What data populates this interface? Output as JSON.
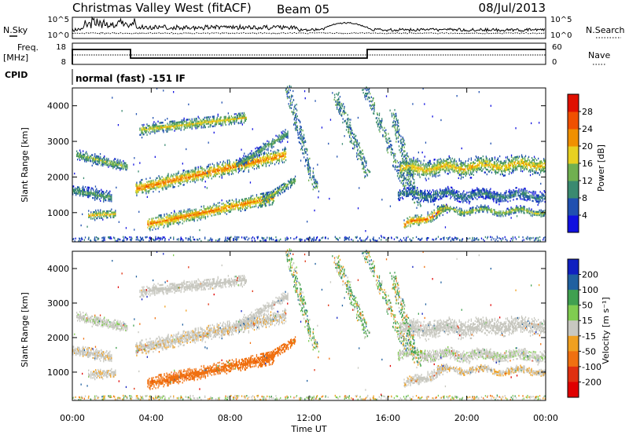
{
  "header": {
    "station": "Christmas Valley West (fitACF)",
    "beam": "Beam 05",
    "date": "08/Jul/2013"
  },
  "top_panels": {
    "nsky_label": "N.Sky",
    "nsearch_label": "N.Search",
    "noise_ticks": [
      "10^5",
      "10^0"
    ],
    "freq_label_1": "Freq.",
    "freq_label_2": "[MHz]",
    "freq_ticks": [
      "18",
      "8"
    ],
    "nave_label": "Nave",
    "nave_ticks": [
      "60",
      "0"
    ],
    "cpid_label": "CPID",
    "cpid_text": "normal (fast) -151 IF"
  },
  "chart_data": [
    {
      "type": "heatmap",
      "name": "power",
      "ylabel": "Slant Range [km]",
      "xlabel": "Time UT",
      "x_ticks": [
        "00:00",
        "04:00",
        "08:00",
        "12:00",
        "16:00",
        "20:00",
        "00:00"
      ],
      "xlim_hours": [
        0,
        24
      ],
      "y_ticks": [
        1000,
        2000,
        3000,
        4000
      ],
      "ylim_km": [
        180,
        4500
      ],
      "colorbar_label": "Power [dB]",
      "colorbar_ticks": [
        4,
        8,
        12,
        16,
        20,
        24,
        28
      ],
      "colorbar_colors": [
        "#1010e0",
        "#2050b0",
        "#3a8a70",
        "#70b050",
        "#e8d020",
        "#f09000",
        "#f05000",
        "#e01000"
      ]
    },
    {
      "type": "heatmap",
      "name": "velocity",
      "ylabel": "Slant Range [km]",
      "xlabel": "Time UT",
      "x_ticks": [
        "00:00",
        "04:00",
        "08:00",
        "12:00",
        "16:00",
        "20:00",
        "00:00"
      ],
      "xlim_hours": [
        0,
        24
      ],
      "y_ticks": [
        1000,
        2000,
        3000,
        4000
      ],
      "ylim_km": [
        180,
        4500
      ],
      "colorbar_label": "Velocity [m s⁻¹]",
      "colorbar_ticks": [
        200,
        100,
        50,
        15,
        -15,
        -50,
        -100,
        -200
      ],
      "colorbar_colors": [
        "#1020c0",
        "#2060a0",
        "#40a050",
        "#80cc50",
        "#c8c8c0",
        "#f0a020",
        "#f07010",
        "#e03010",
        "#e00000"
      ]
    }
  ]
}
